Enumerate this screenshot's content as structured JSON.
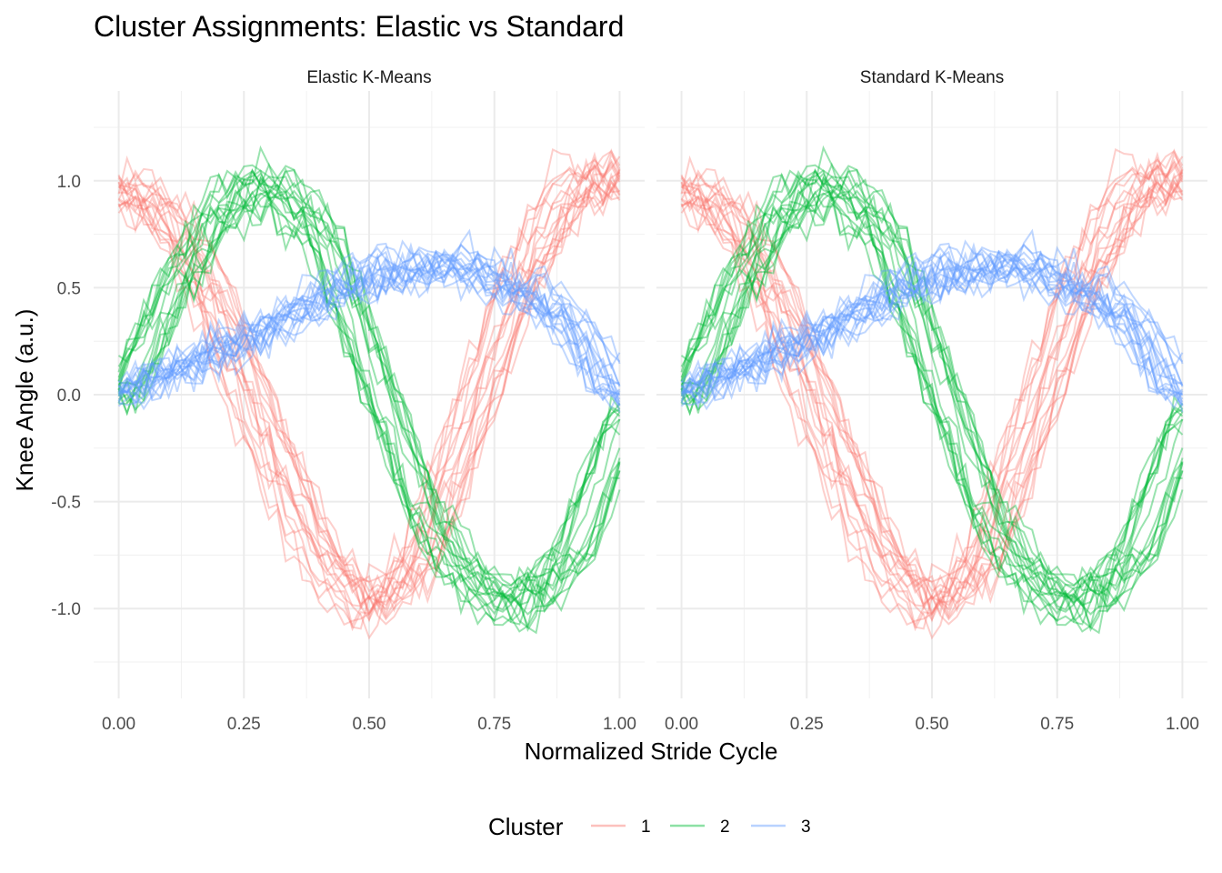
{
  "chart_data": {
    "type": "line",
    "title": "Cluster Assignments: Elastic vs Standard",
    "xlabel": "Normalized Stride Cycle",
    "ylabel": "Knee Angle (a.u.)",
    "xlim": [
      -0.05,
      1.05
    ],
    "ylim": [
      -1.42,
      1.42
    ],
    "x_ticks": [
      0.0,
      0.25,
      0.5,
      0.75,
      1.0
    ],
    "x_tick_labels": [
      "0.00",
      "0.25",
      "0.50",
      "0.75",
      "1.00"
    ],
    "y_ticks": [
      -1.0,
      -0.5,
      0.0,
      0.5,
      1.0
    ],
    "y_tick_labels": [
      "-1.0",
      "-0.5",
      "0.0",
      "0.5",
      "1.0"
    ],
    "grid": true,
    "legend": {
      "title": "Cluster",
      "position": "bottom",
      "entries": [
        {
          "label": "1",
          "color": "#F8766D"
        },
        {
          "label": "2",
          "color": "#00BA38"
        },
        {
          "label": "3",
          "color": "#619CFF"
        }
      ]
    },
    "panels": [
      {
        "name": "Elastic K-Means"
      },
      {
        "name": "Standard K-Means"
      }
    ],
    "series": [
      {
        "cluster": "1",
        "color": "#F8766D",
        "opacity": 0.35,
        "curves": 18,
        "mean_x": [
          0.0,
          0.1,
          0.2,
          0.3,
          0.4,
          0.5,
          0.6,
          0.7,
          0.8,
          0.9,
          1.0
        ],
        "mean_y": [
          0.95,
          0.8,
          0.35,
          -0.25,
          -0.75,
          -1.0,
          -0.75,
          -0.1,
          0.55,
          0.95,
          1.0
        ]
      },
      {
        "cluster": "2",
        "color": "#00BA38",
        "opacity": 0.4,
        "curves": 18,
        "mean_x": [
          0.0,
          0.1,
          0.2,
          0.3,
          0.4,
          0.5,
          0.6,
          0.7,
          0.8,
          0.9,
          1.0
        ],
        "mean_y": [
          0.0,
          0.5,
          0.9,
          1.0,
          0.75,
          0.1,
          -0.55,
          -0.9,
          -1.0,
          -0.75,
          -0.1
        ]
      },
      {
        "cluster": "3",
        "color": "#619CFF",
        "opacity": 0.4,
        "curves": 18,
        "mean_x": [
          0.0,
          0.1,
          0.2,
          0.3,
          0.4,
          0.5,
          0.6,
          0.7,
          0.8,
          0.9,
          1.0
        ],
        "mean_y": [
          0.0,
          0.1,
          0.2,
          0.3,
          0.45,
          0.55,
          0.6,
          0.6,
          0.5,
          0.35,
          0.0
        ]
      }
    ]
  }
}
